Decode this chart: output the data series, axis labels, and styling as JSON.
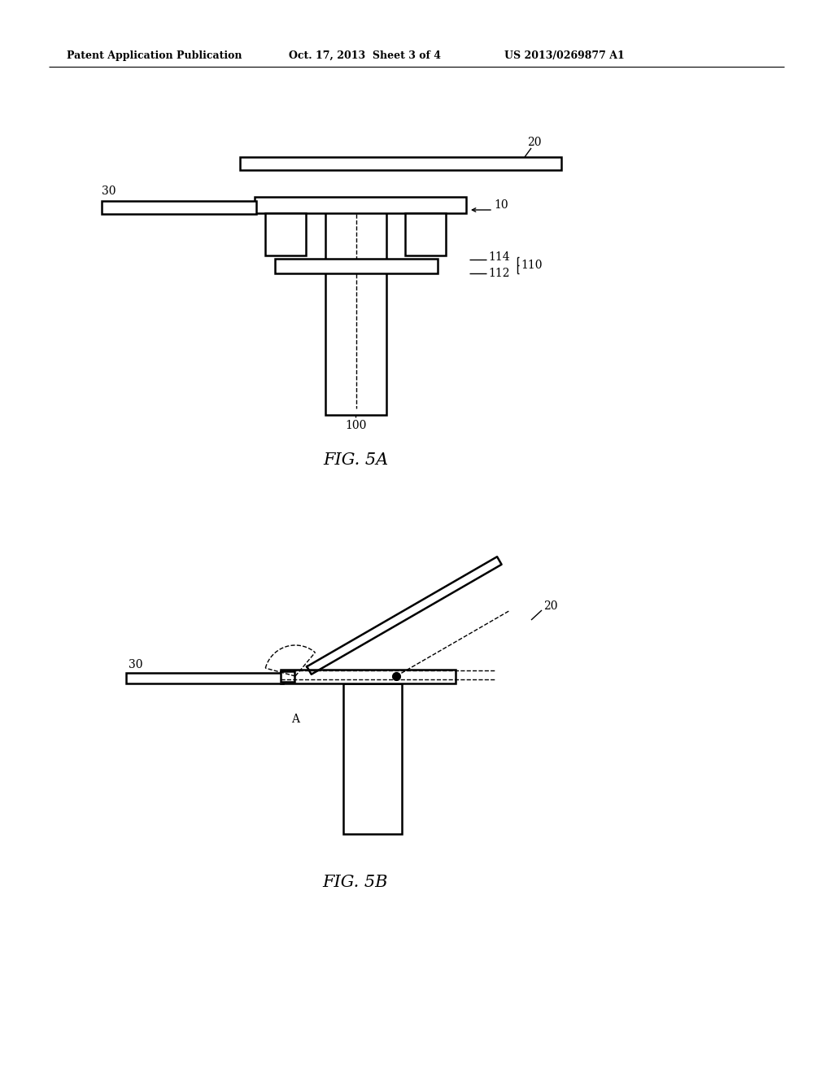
{
  "bg_color": "#ffffff",
  "line_color": "#000000",
  "header_left": "Patent Application Publication",
  "header_mid": "Oct. 17, 2013  Sheet 3 of 4",
  "header_right": "US 2013/0269877 A1",
  "fig5a_label": "FIG. 5A",
  "fig5b_label": "FIG. 5B",
  "label_20_a": "20",
  "label_10_a": "10",
  "label_30_a": "30",
  "label_100": "100",
  "label_110": "110",
  "label_112": "112",
  "label_114": "114",
  "label_20_b": "20",
  "label_30_b": "30",
  "label_A": "A"
}
